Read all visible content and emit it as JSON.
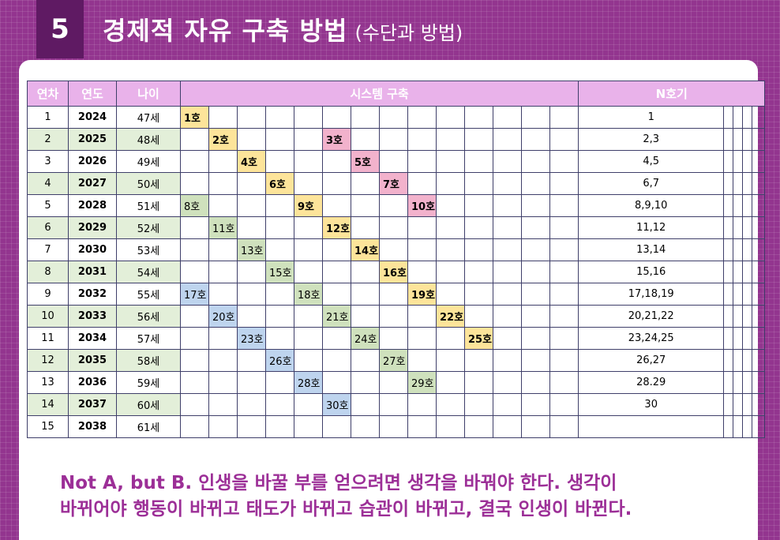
{
  "header": {
    "number": "5",
    "title": "경제적 자유 구축 방법",
    "subtitle": "(수단과 방법)"
  },
  "table": {
    "headers": {
      "col1": "연차",
      "col2": "연도",
      "col3": "나이",
      "system": "시스템 구축",
      "n": "N호기"
    },
    "rows": [
      {
        "n": "1",
        "year": "2024",
        "age": "47세",
        "cells": [
          {
            "c": 0,
            "t": "1호",
            "k": "yellow"
          }
        ],
        "list": "1"
      },
      {
        "n": "2",
        "year": "2025",
        "age": "48세",
        "cells": [
          {
            "c": 1,
            "t": "2호",
            "k": "yellow"
          },
          {
            "c": 5,
            "t": "3호",
            "k": "pink"
          }
        ],
        "list": "2,3"
      },
      {
        "n": "3",
        "year": "2026",
        "age": "49세",
        "cells": [
          {
            "c": 2,
            "t": "4호",
            "k": "yellow"
          },
          {
            "c": 6,
            "t": "5호",
            "k": "pink"
          }
        ],
        "list": "4,5"
      },
      {
        "n": "4",
        "year": "2027",
        "age": "50세",
        "cells": [
          {
            "c": 3,
            "t": "6호",
            "k": "yellow"
          },
          {
            "c": 7,
            "t": "7호",
            "k": "pink"
          }
        ],
        "list": "6,7"
      },
      {
        "n": "5",
        "year": "2028",
        "age": "51세",
        "cells": [
          {
            "c": 0,
            "t": "8호",
            "k": "green"
          },
          {
            "c": 4,
            "t": "9호",
            "k": "yellow"
          },
          {
            "c": 8,
            "t": "10호",
            "k": "pink"
          }
        ],
        "list": "8,9,10"
      },
      {
        "n": "6",
        "year": "2029",
        "age": "52세",
        "cells": [
          {
            "c": 1,
            "t": "11호",
            "k": "green"
          },
          {
            "c": 5,
            "t": "12호",
            "k": "yellow"
          }
        ],
        "list": "11,12"
      },
      {
        "n": "7",
        "year": "2030",
        "age": "53세",
        "cells": [
          {
            "c": 2,
            "t": "13호",
            "k": "green"
          },
          {
            "c": 6,
            "t": "14호",
            "k": "yellow"
          }
        ],
        "list": "13,14"
      },
      {
        "n": "8",
        "year": "2031",
        "age": "54세",
        "cells": [
          {
            "c": 3,
            "t": "15호",
            "k": "green"
          },
          {
            "c": 7,
            "t": "16호",
            "k": "yellow"
          }
        ],
        "list": "15,16"
      },
      {
        "n": "9",
        "year": "2032",
        "age": "55세",
        "cells": [
          {
            "c": 0,
            "t": "17호",
            "k": "blue"
          },
          {
            "c": 4,
            "t": "18호",
            "k": "green"
          },
          {
            "c": 8,
            "t": "19호",
            "k": "yellow"
          }
        ],
        "list": "17,18,19"
      },
      {
        "n": "10",
        "year": "2033",
        "age": "56세",
        "cells": [
          {
            "c": 1,
            "t": "20호",
            "k": "blue"
          },
          {
            "c": 5,
            "t": "21호",
            "k": "green"
          },
          {
            "c": 9,
            "t": "22호",
            "k": "yellow"
          }
        ],
        "list": "20,21,22"
      },
      {
        "n": "11",
        "year": "2034",
        "age": "57세",
        "cells": [
          {
            "c": 2,
            "t": "23호",
            "k": "blue"
          },
          {
            "c": 6,
            "t": "24호",
            "k": "green"
          },
          {
            "c": 10,
            "t": "25호",
            "k": "yellow"
          }
        ],
        "list": "23,24,25"
      },
      {
        "n": "12",
        "year": "2035",
        "age": "58세",
        "cells": [
          {
            "c": 3,
            "t": "26호",
            "k": "blue"
          },
          {
            "c": 7,
            "t": "27호",
            "k": "green"
          }
        ],
        "list": "26,27"
      },
      {
        "n": "13",
        "year": "2036",
        "age": "59세",
        "cells": [
          {
            "c": 4,
            "t": "28호",
            "k": "blue"
          },
          {
            "c": 8,
            "t": "29호",
            "k": "green"
          }
        ],
        "list": "28.29"
      },
      {
        "n": "14",
        "year": "2037",
        "age": "60세",
        "cells": [
          {
            "c": 5,
            "t": "30호",
            "k": "blue"
          }
        ],
        "list": "30"
      },
      {
        "n": "15",
        "year": "2038",
        "age": "61세",
        "cells": [],
        "list": ""
      }
    ]
  },
  "quote": {
    "line1": "Not A, but B. 인생을 바꿀 부를 얻으려면 생각을 바꿔야 한다. 생각이",
    "line2": "바뀌어야 행동이 바뀌고 태도가 바뀌고 습관이 바뀌고, 결국 인생이 바뀐다."
  },
  "colors": {
    "background": "#93358f",
    "number_box": "#5f1a63",
    "header_row": "#e9b2ea",
    "stripe": "#e3efd9",
    "yellow": "#fde49a",
    "pink": "#f2b2cc",
    "green": "#cfe1bd",
    "blue": "#bed4ee",
    "quote_text": "#9c2f97"
  }
}
